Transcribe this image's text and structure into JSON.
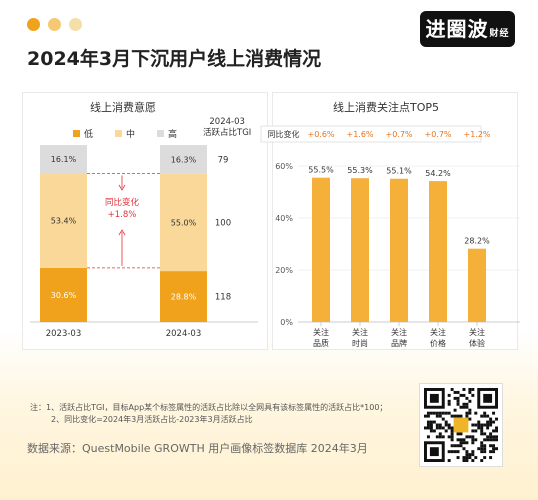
{
  "header": {
    "dot_colors": [
      "#f0a21c",
      "#f6c873",
      "#f4dfa9"
    ],
    "logo_main": "进圈波",
    "logo_sub": "财经",
    "title": "2024年3月下沉用户线上消费情况"
  },
  "colors": {
    "low": "#f0a21c",
    "mid": "#f9d899",
    "high": "#dcdcdc",
    "bar": "#f5b03a",
    "change_red": "#e0323c",
    "label_orange": "#e8731a"
  },
  "chart_data": [
    {
      "type": "bar",
      "stacked": true,
      "title": "线上消费意愿",
      "categories": [
        "2023-03",
        "2024-03"
      ],
      "legend": [
        "低",
        "中",
        "高"
      ],
      "series": [
        {
          "name": "低",
          "values": [
            30.6,
            28.8
          ],
          "labels": [
            "30.6%",
            "28.8%"
          ]
        },
        {
          "name": "中",
          "values": [
            53.4,
            55.0
          ],
          "labels": [
            "53.4%",
            "55.0%"
          ]
        },
        {
          "name": "高",
          "values": [
            16.1,
            16.3
          ],
          "labels": [
            "16.1%",
            "16.3%"
          ]
        }
      ],
      "tgi_header": [
        "2024-03",
        "活跃占比TGI"
      ],
      "tgi_values": [
        "79",
        "100",
        "118"
      ],
      "annotation": [
        "同比变化",
        "+1.8%"
      ]
    },
    {
      "type": "bar",
      "title": "线上消费关注点TOP5",
      "categories": [
        "关注\n品质",
        "关注\n时尚",
        "关注\n品牌",
        "关注\n价格",
        "关注\n体验"
      ],
      "values": [
        55.5,
        55.3,
        55.1,
        54.2,
        28.2
      ],
      "labels": [
        "55.5%",
        "55.3%",
        "55.1%",
        "54.2%",
        "28.2%"
      ],
      "yticks": [
        "60%",
        "40%",
        "20%",
        "0%"
      ],
      "ylim": [
        0,
        60
      ],
      "change_label": "同比变化",
      "changes": [
        "+0.6%",
        "+1.6%",
        "+0.7%",
        "+0.7%",
        "+1.2%"
      ]
    }
  ],
  "notes": [
    "注：1、活跃占比TGI，目标App某个标签属性的活跃占比除以全网具有该标签属性的活跃占比*100；",
    "2、同比变化=2024年3月活跃占比-2023年3月活跃占比"
  ],
  "source": "数据来源：QuestMobile GROWTH 用户画像标签数据库 2024年3月",
  "qr": {
    "center_label": "进圈波"
  }
}
